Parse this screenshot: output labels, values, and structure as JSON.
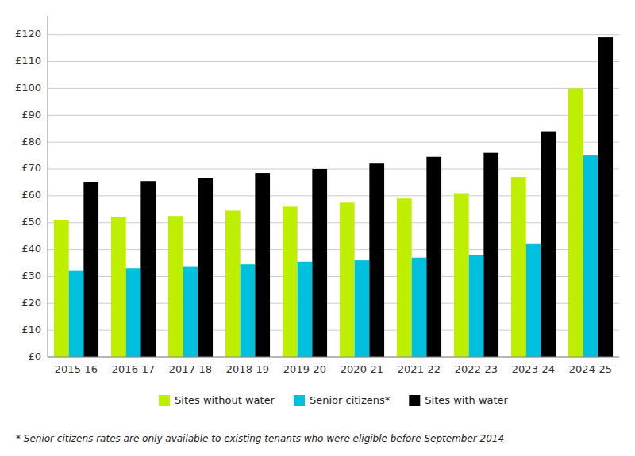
{
  "chart_data": {
    "type": "bar",
    "categories": [
      "2015-16",
      "2016-17",
      "2017-18",
      "2018-19",
      "2019-20",
      "2020-21",
      "2021-22",
      "2022-23",
      "2023-24",
      "2024-25"
    ],
    "series": [
      {
        "name": "Sites without water",
        "color": "#bfef00",
        "values": [
          51,
          52,
          52.5,
          54.5,
          56,
          57.5,
          59,
          61,
          67,
          100
        ]
      },
      {
        "name": "Senior citizens*",
        "color": "#00bfdf",
        "values": [
          32,
          33,
          33.5,
          34.5,
          35.5,
          36,
          37,
          38,
          42,
          75
        ]
      },
      {
        "name": "Sites with water",
        "color": "#000000",
        "values": [
          65,
          65.5,
          66.5,
          68.5,
          70,
          72,
          74.5,
          76,
          84,
          119
        ]
      }
    ],
    "ylim": [
      0,
      127
    ],
    "yticks": [
      {
        "value": 0,
        "label": "£0"
      },
      {
        "value": 10,
        "label": "£10"
      },
      {
        "value": 20,
        "label": "£20"
      },
      {
        "value": 30,
        "label": "£30"
      },
      {
        "value": 40,
        "label": "£40"
      },
      {
        "value": 50,
        "label": "£50"
      },
      {
        "value": 60,
        "label": "£60"
      },
      {
        "value": 70,
        "label": "£70"
      },
      {
        "value": 80,
        "label": "£80"
      },
      {
        "value": 90,
        "label": "£90"
      },
      {
        "value": 100,
        "label": "£100"
      },
      {
        "value": 110,
        "label": "£110"
      },
      {
        "value": 120,
        "label": "£120"
      }
    ],
    "grid": true,
    "legend": "bottom",
    "footnote": "* Senior citizens rates are only available to existing tenants who were eligible before September 2014"
  }
}
